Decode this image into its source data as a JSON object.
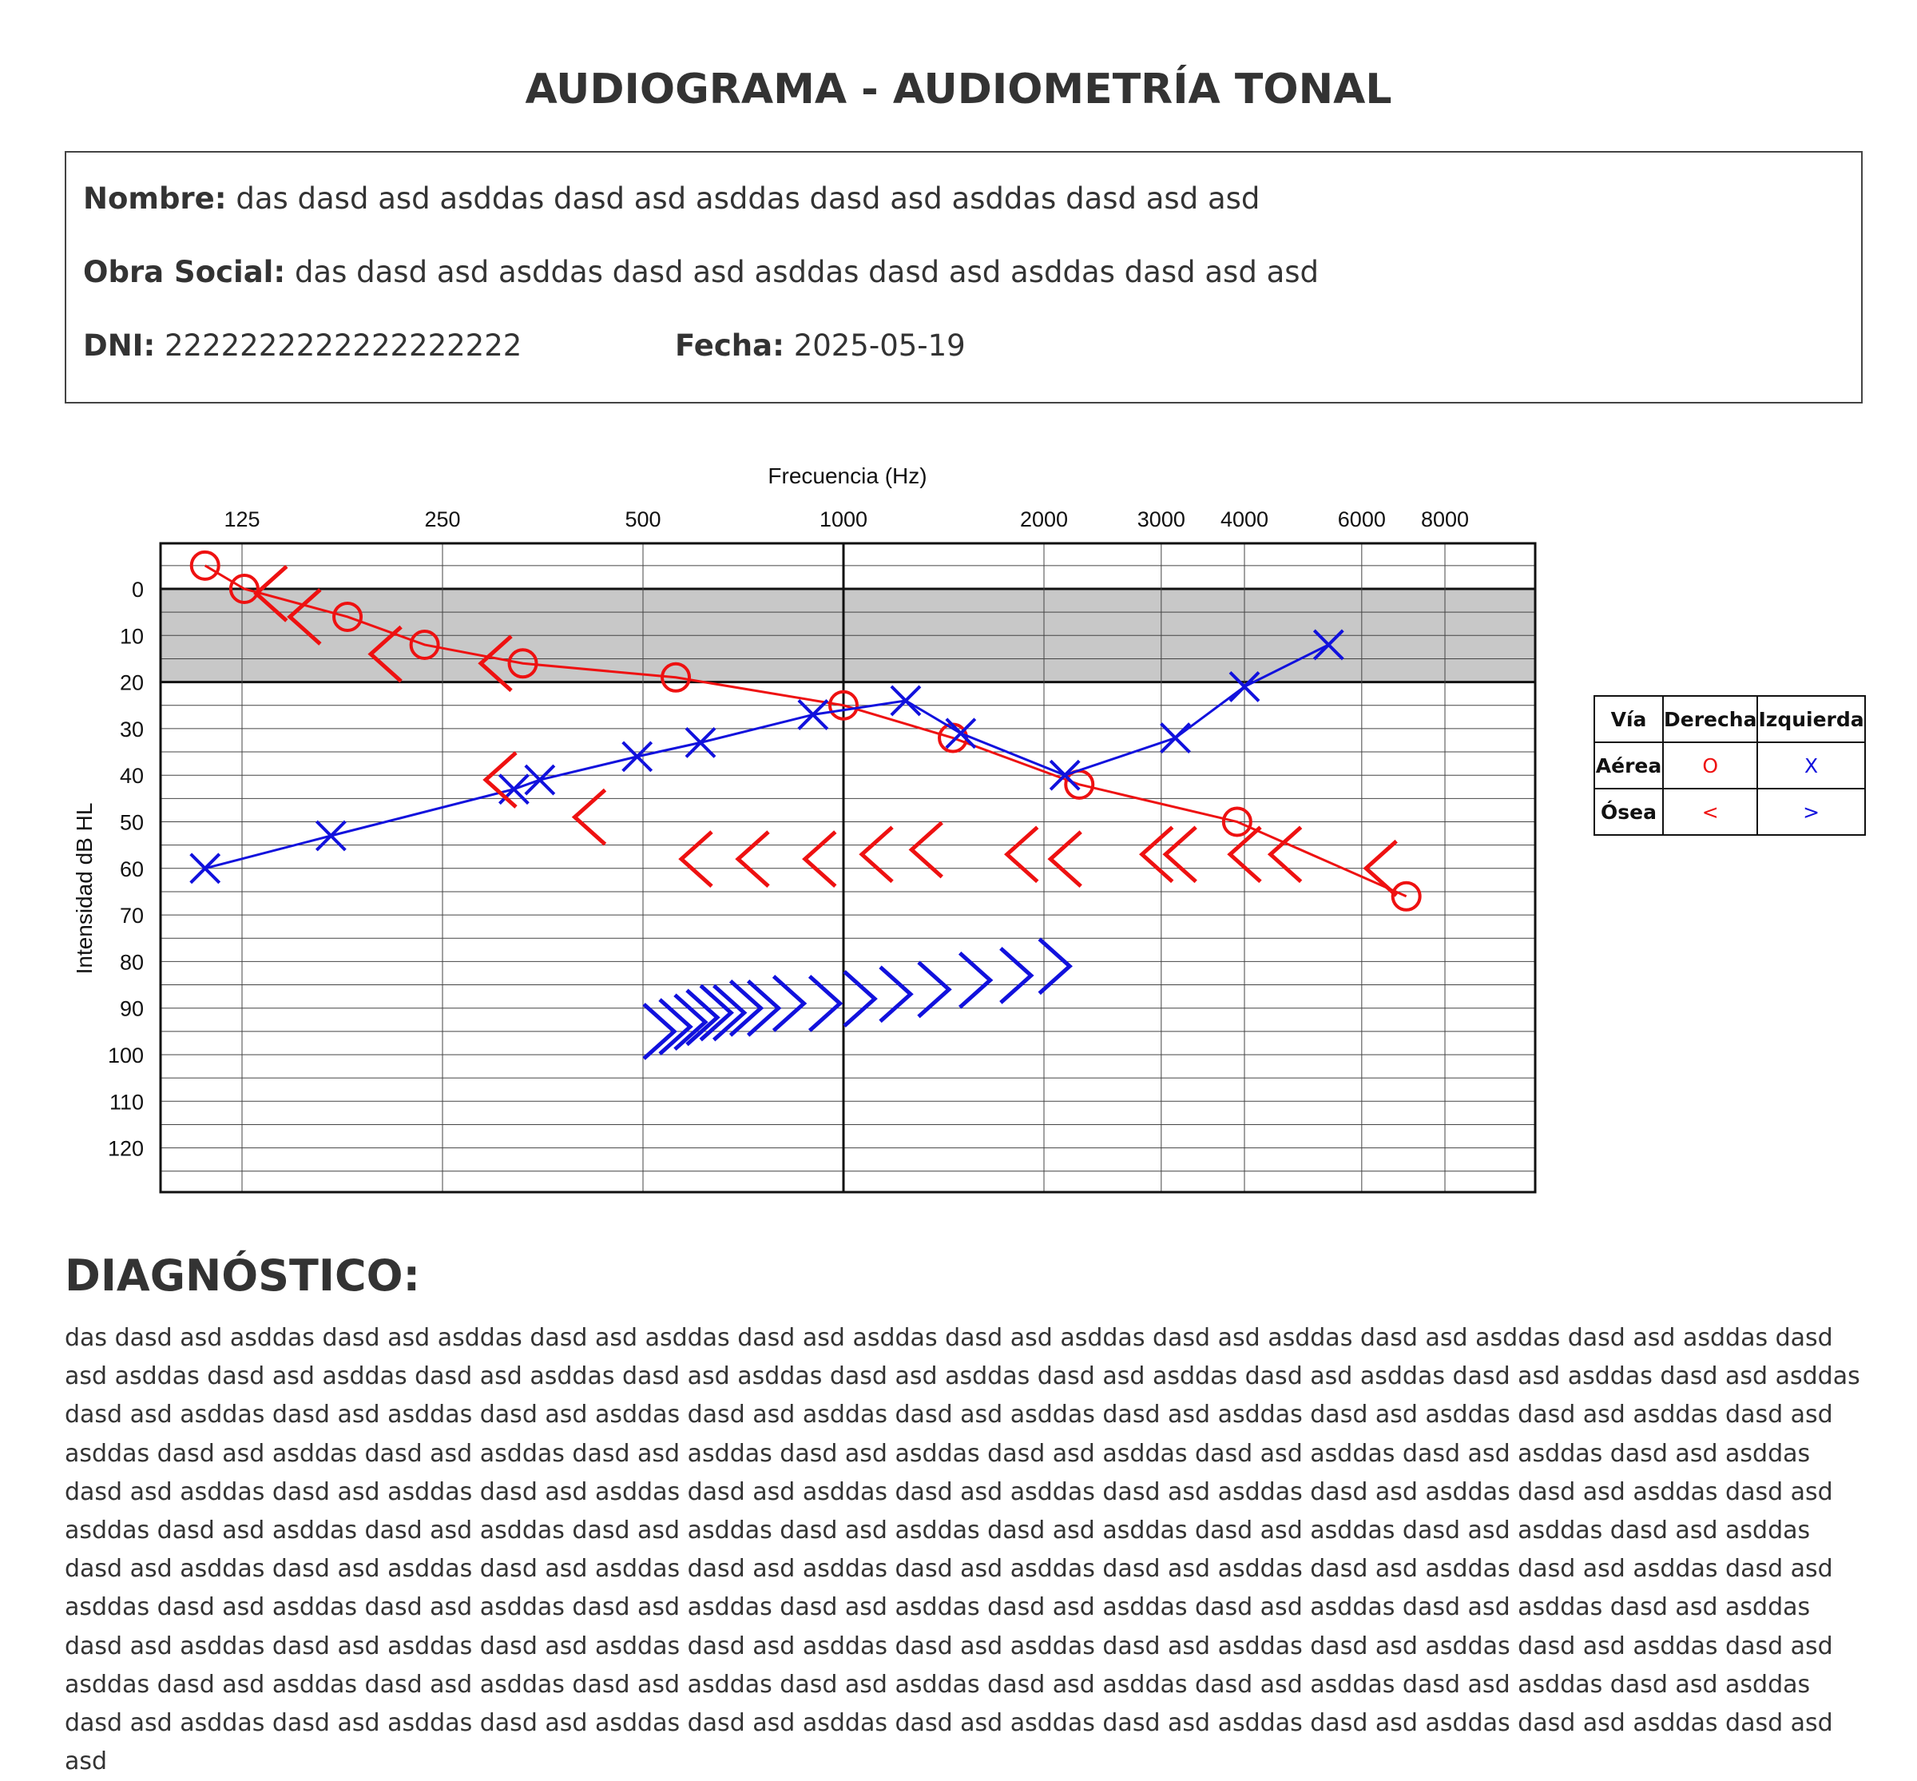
{
  "title": "AUDIOGRAMA - AUDIOMETRÍA TONAL",
  "patient": {
    "nombre_label": "Nombre:",
    "nombre": "das dasd asd asddas dasd asd asddas dasd asd asddas dasd asd asd",
    "obra_label": "Obra Social:",
    "obra": "das dasd asd asddas dasd asd asddas dasd asd asddas dasd asd asd",
    "dni_label": "DNI:",
    "dni": "2222222222222222222",
    "fecha_label": "Fecha:",
    "fecha": "2025-05-19"
  },
  "legend": {
    "header": [
      "Vía",
      "Derecha",
      "Izquierda"
    ],
    "aerea": "Aérea",
    "osea": "Ósea",
    "right_air_symbol": "O",
    "left_air_symbol": "X",
    "right_bone_symbol": "<",
    "left_bone_symbol": ">"
  },
  "colors": {
    "right": "#ee1111",
    "left": "#1111dd",
    "normal_band": "#c8c8c8"
  },
  "diagnosis": {
    "title": "DIAGNÓSTICO:",
    "text": "das dasd asd asddas dasd asd asddas dasd asd asddas dasd asd asddas dasd asd asddas dasd asd asddas dasd asd asddas dasd asd asddas dasd asd asddas dasd asd asddas dasd asd asddas dasd asd asddas dasd asd asddas dasd asd asddas dasd asd asddas dasd asd asddas dasd asd asddas dasd asd asddas dasd asd asddas dasd asd asddas dasd asd asddas dasd asd asddas dasd asd asddas dasd asd asddas dasd asd asddas dasd asd asddas dasd asd asddas dasd asd asddas dasd asd asddas dasd asd asddas dasd asd asddas dasd asd asddas dasd asd asddas dasd asd asddas dasd asd asddas dasd asd asddas dasd asd asddas dasd asd asddas dasd asd asddas dasd asd asddas dasd asd asddas dasd asd asddas dasd asd asddas dasd asd asddas dasd asd asddas dasd asd asddas dasd asd asddas dasd asd asddas dasd asd asddas dasd asd asddas dasd asd asddas dasd asd asddas dasd asd asddas dasd asd asddas dasd asd asddas dasd asd asddas dasd asd asddas dasd asd asddas dasd asd asddas dasd asd asddas dasd asd asddas dasd asd asddas dasd asd asddas dasd asd asddas dasd asd asddas dasd asd asddas dasd asd asddas dasd asd asddas dasd asd asddas dasd asd asddas dasd asd asddas dasd asd asddas dasd asd asddas dasd asd asddas dasd asd asddas dasd asd asddas dasd asd asddas dasd asd asddas dasd asd asddas dasd asd asddas dasd asd asddas dasd asd asddas dasd asd asddas dasd asd asddas dasd asd asddas dasd asd asddas dasd asd asddas dasd asd asddas dasd asd asddas dasd asd asddas dasd asd asddas dasd asd asddas dasd asd asddas dasd asd asd"
  },
  "chart_data": {
    "type": "scatter",
    "xlabel": "Frecuencia (Hz)",
    "ylabel": "Intensidad dB HL",
    "x_scale": "log",
    "x_ticks": [
      125,
      250,
      500,
      1000,
      2000,
      3000,
      4000,
      6000,
      8000
    ],
    "y_ticks": [
      0,
      10,
      20,
      30,
      40,
      50,
      60,
      70,
      80,
      90,
      100,
      110,
      120
    ],
    "xlim": [
      125,
      8000
    ],
    "ylim": [
      -10,
      130
    ],
    "y_inverted": true,
    "normal_band": [
      0,
      20
    ],
    "grid": true,
    "series": [
      {
        "name": "Aérea Derecha",
        "color": "#ee1111",
        "marker": "circle",
        "connected": true,
        "points": [
          {
            "x": 110,
            "y": -5
          },
          {
            "x": 126,
            "y": 0
          },
          {
            "x": 180,
            "y": 6
          },
          {
            "x": 235,
            "y": 12
          },
          {
            "x": 330,
            "y": 16
          },
          {
            "x": 560,
            "y": 19
          },
          {
            "x": 1000,
            "y": 25
          },
          {
            "x": 1460,
            "y": 32
          },
          {
            "x": 2260,
            "y": 42
          },
          {
            "x": 3900,
            "y": 50
          },
          {
            "x": 7000,
            "y": 66
          }
        ]
      },
      {
        "name": "Aérea Izquierda",
        "color": "#1111dd",
        "marker": "x",
        "connected": true,
        "points": [
          {
            "x": 110,
            "y": 60
          },
          {
            "x": 170,
            "y": 53
          },
          {
            "x": 320,
            "y": 43
          },
          {
            "x": 350,
            "y": 41
          },
          {
            "x": 490,
            "y": 36
          },
          {
            "x": 610,
            "y": 33
          },
          {
            "x": 900,
            "y": 27
          },
          {
            "x": 1240,
            "y": 24
          },
          {
            "x": 1500,
            "y": 31
          },
          {
            "x": 2150,
            "y": 40
          },
          {
            "x": 3150,
            "y": 32
          },
          {
            "x": 4000,
            "y": 21
          },
          {
            "x": 5350,
            "y": 12
          }
        ]
      },
      {
        "name": "Ósea Derecha",
        "color": "#ee1111",
        "marker": "lt",
        "connected": false,
        "points": [
          {
            "x": 138,
            "y": 1
          },
          {
            "x": 155,
            "y": 6
          },
          {
            "x": 205,
            "y": 14
          },
          {
            "x": 300,
            "y": 16
          },
          {
            "x": 305,
            "y": 41
          },
          {
            "x": 415,
            "y": 49
          },
          {
            "x": 600,
            "y": 58
          },
          {
            "x": 730,
            "y": 58
          },
          {
            "x": 920,
            "y": 58
          },
          {
            "x": 1120,
            "y": 57
          },
          {
            "x": 1330,
            "y": 56
          },
          {
            "x": 1850,
            "y": 57
          },
          {
            "x": 2150,
            "y": 58
          },
          {
            "x": 2950,
            "y": 57
          },
          {
            "x": 3200,
            "y": 57
          },
          {
            "x": 4000,
            "y": 57
          },
          {
            "x": 4600,
            "y": 57
          },
          {
            "x": 6400,
            "y": 60
          }
        ]
      },
      {
        "name": "Ósea Izquierda",
        "color": "#1111dd",
        "marker": "gt",
        "connected": false,
        "points": [
          {
            "x": 530,
            "y": 95
          },
          {
            "x": 560,
            "y": 94
          },
          {
            "x": 590,
            "y": 93
          },
          {
            "x": 615,
            "y": 92
          },
          {
            "x": 645,
            "y": 91
          },
          {
            "x": 675,
            "y": 91
          },
          {
            "x": 715,
            "y": 90
          },
          {
            "x": 760,
            "y": 90
          },
          {
            "x": 830,
            "y": 89
          },
          {
            "x": 940,
            "y": 89
          },
          {
            "x": 1060,
            "y": 88
          },
          {
            "x": 1200,
            "y": 87
          },
          {
            "x": 1370,
            "y": 86
          },
          {
            "x": 1580,
            "y": 84
          },
          {
            "x": 1820,
            "y": 83
          },
          {
            "x": 2080,
            "y": 81
          }
        ]
      }
    ]
  }
}
